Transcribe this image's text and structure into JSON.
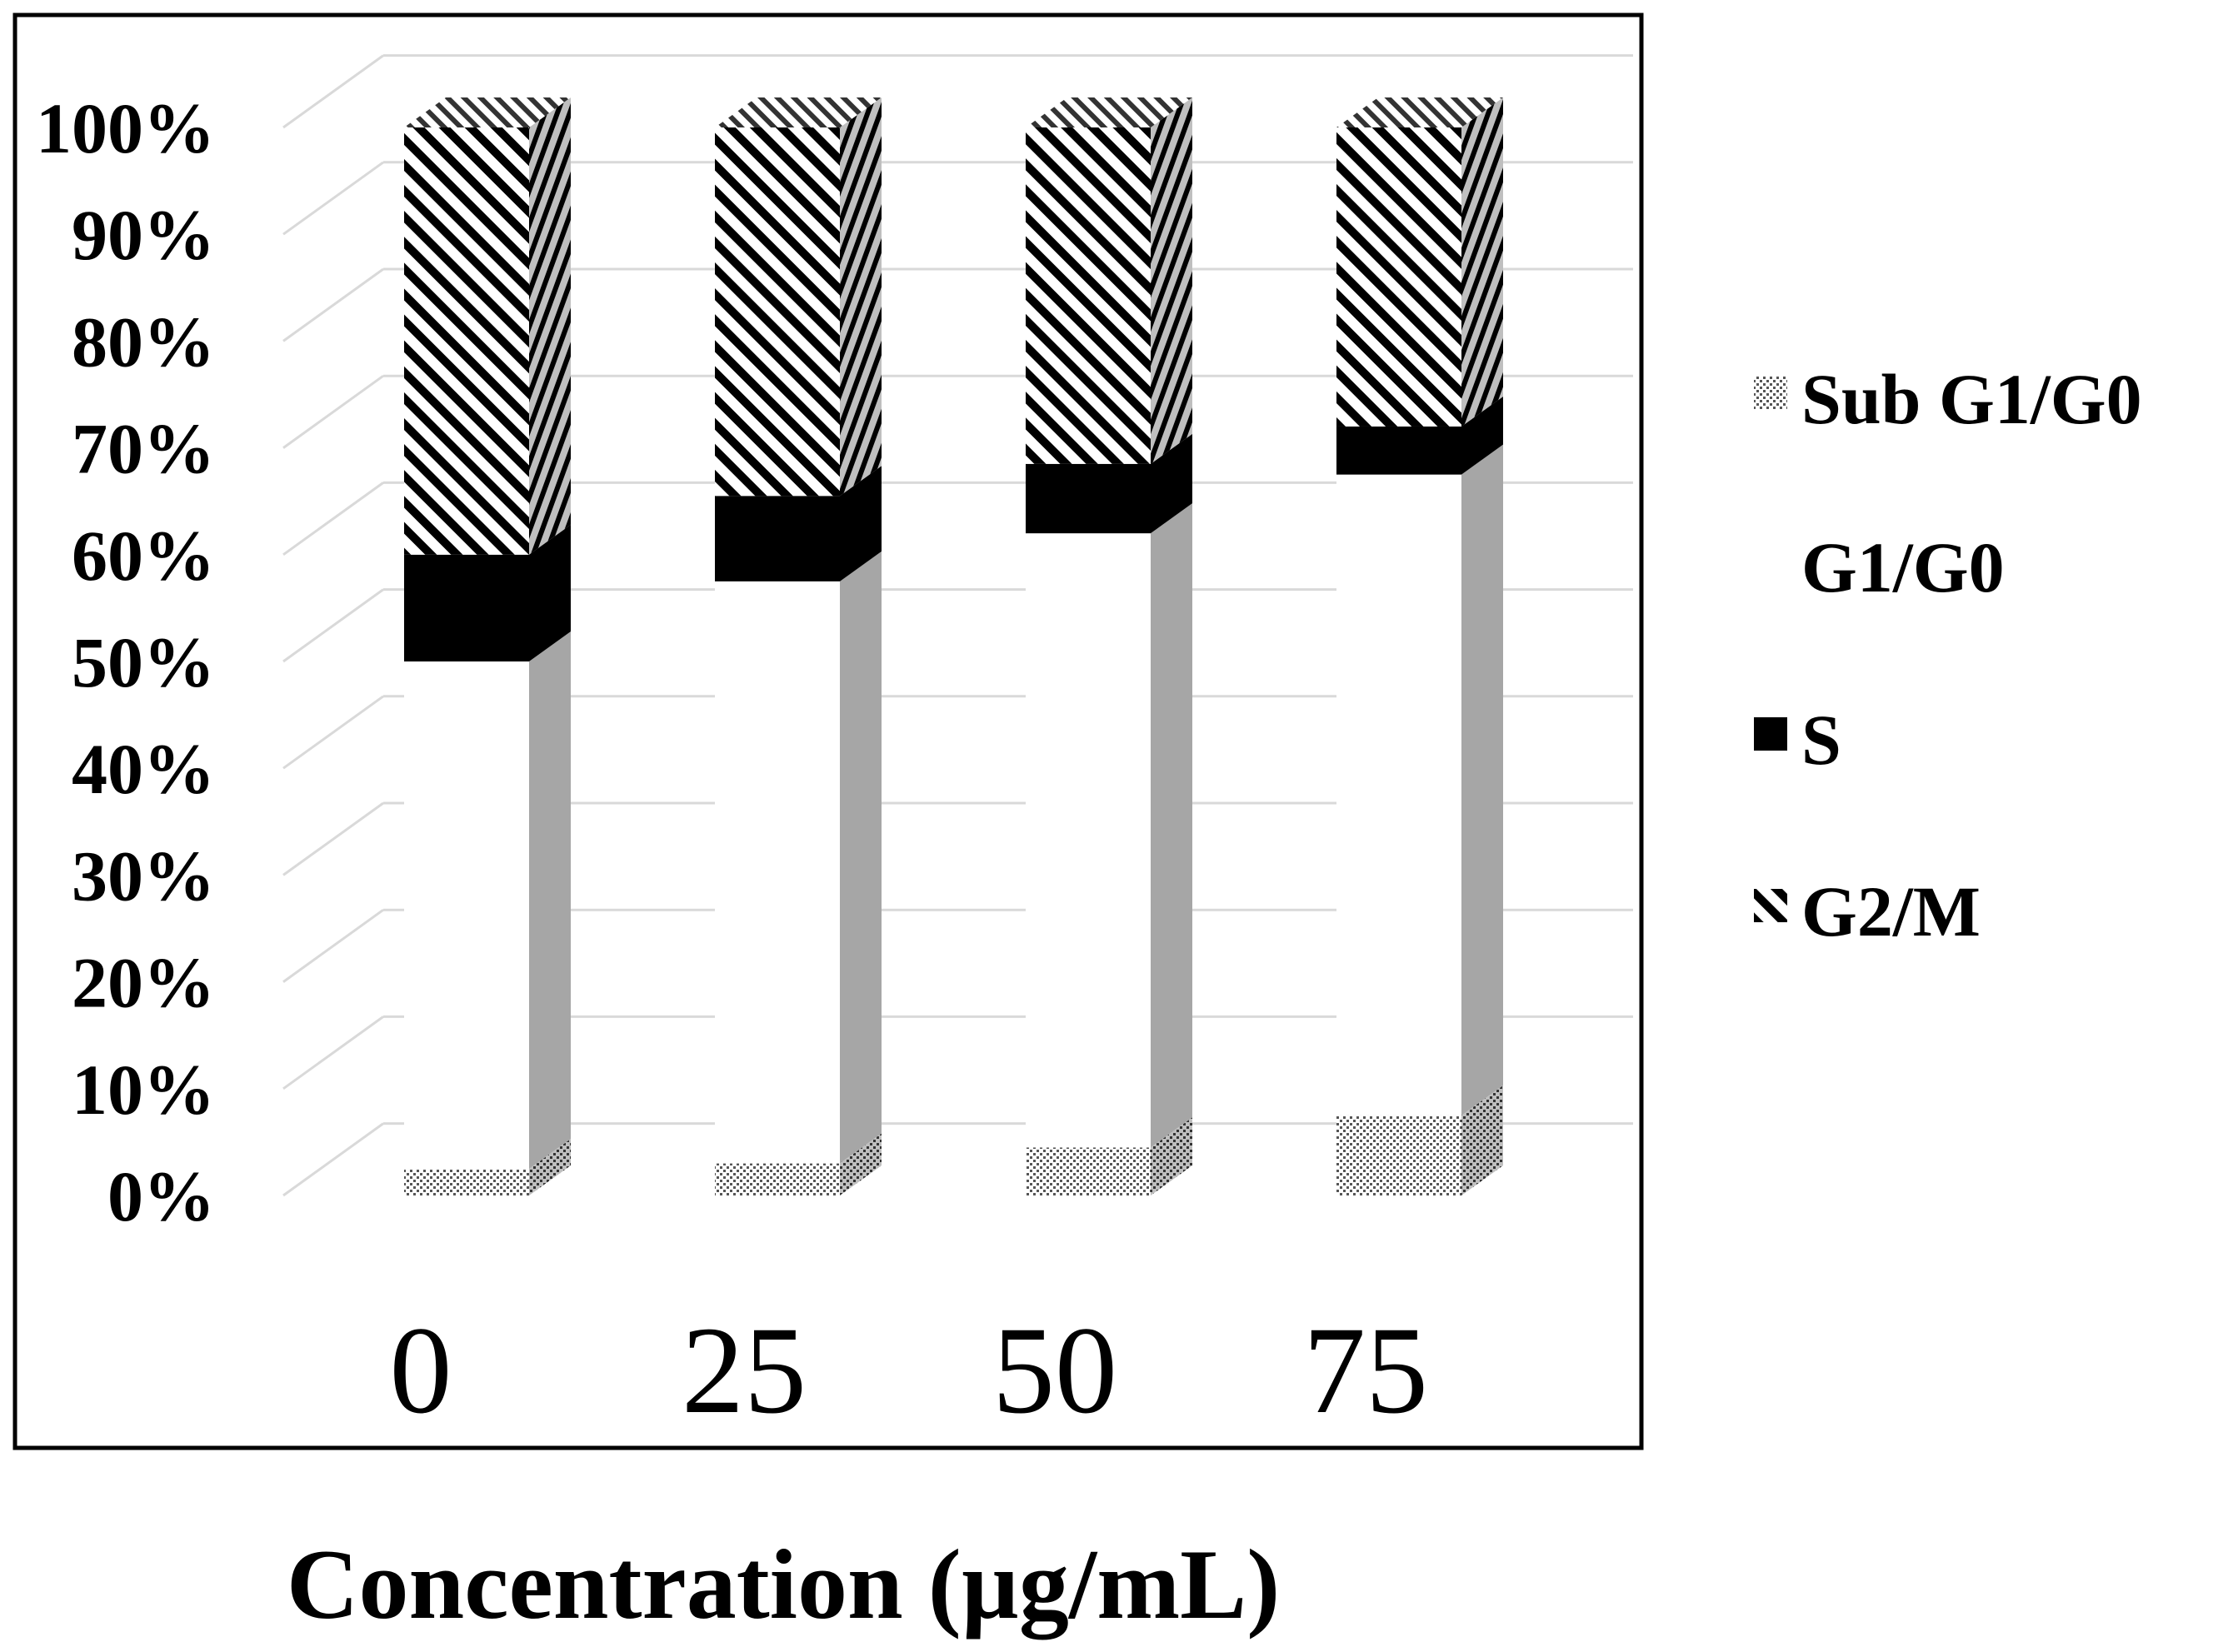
{
  "chart_data": {
    "type": "bar",
    "stacked": true,
    "three_d": true,
    "title": "",
    "xlabel": "Concentration (µg/mL)",
    "ylabel": "",
    "ylim": [
      0,
      100
    ],
    "y_tick_labels": [
      "0%",
      "10%",
      "20%",
      "30%",
      "40%",
      "50%",
      "60%",
      "70%",
      "80%",
      "90%",
      "100%"
    ],
    "categories": [
      "0",
      "25",
      "50",
      "75"
    ],
    "grid": true,
    "legend_position": "right",
    "series": [
      {
        "name": "Sub G1/G0",
        "pattern": "dots",
        "values": [
          2.5,
          3.0,
          4.5,
          7.5
        ]
      },
      {
        "name": "G1/G0",
        "pattern": "white",
        "values": [
          47.5,
          54.5,
          57.5,
          60.0
        ]
      },
      {
        "name": "S",
        "pattern": "solid",
        "values": [
          10.0,
          8.0,
          6.5,
          4.5
        ]
      },
      {
        "name": "G2/M",
        "pattern": "diagonal",
        "values": [
          40.0,
          34.5,
          31.5,
          28.0
        ]
      }
    ],
    "colors": {
      "grid": "#d9d9d9",
      "side": "#a6a6a6",
      "solid": "#000000",
      "frame": "#000000"
    }
  }
}
